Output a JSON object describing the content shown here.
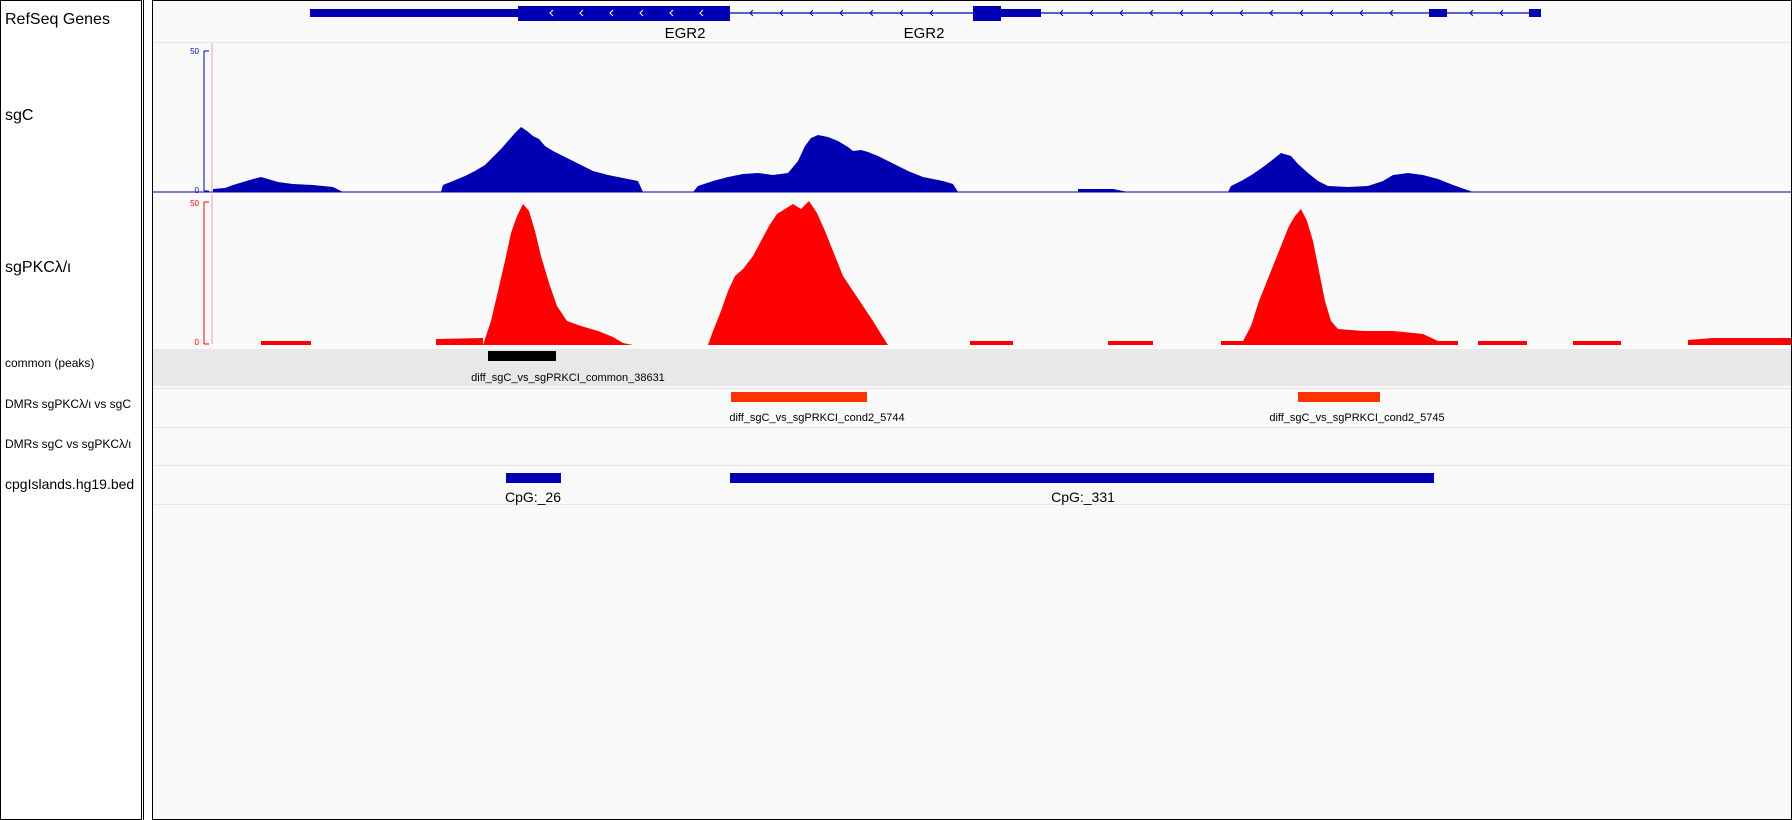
{
  "tracks": [
    {
      "id": "refseq",
      "name": "RefSeq Genes"
    },
    {
      "id": "sgc",
      "name": "sgC"
    },
    {
      "id": "sgpkc",
      "name": "sgPKCλ/ι"
    },
    {
      "id": "common",
      "name": "common (peaks)"
    },
    {
      "id": "dmr1",
      "name": "DMRs sgPKCλ/ι vs sgC"
    },
    {
      "id": "dmr2",
      "name": "DMRs sgC vs sgPKCλ/ι"
    },
    {
      "id": "cpg",
      "name": "cpgIslands.hg19.bed"
    }
  ],
  "genes": [
    "EGR2",
    "EGR2"
  ],
  "sgc_scale": {
    "max": "50",
    "min": "0"
  },
  "sgpkc_scale": {
    "max": "50",
    "min": "0"
  },
  "features": {
    "common": "diff_sgC_vs_sgPRKCI_common_38631",
    "dmr1a": "diff_sgC_vs_sgPRKCI_cond2_5744",
    "dmr1b": "diff_sgC_vs_sgPRKCI_cond2_5745",
    "cpg1": "CpG:_26",
    "cpg2": "CpG:_331"
  },
  "colors": {
    "blue": "#0000b2",
    "red": "#ff0000",
    "orange": "#ff3300",
    "black": "#000000",
    "common_bg": "#e8e8e8"
  }
}
